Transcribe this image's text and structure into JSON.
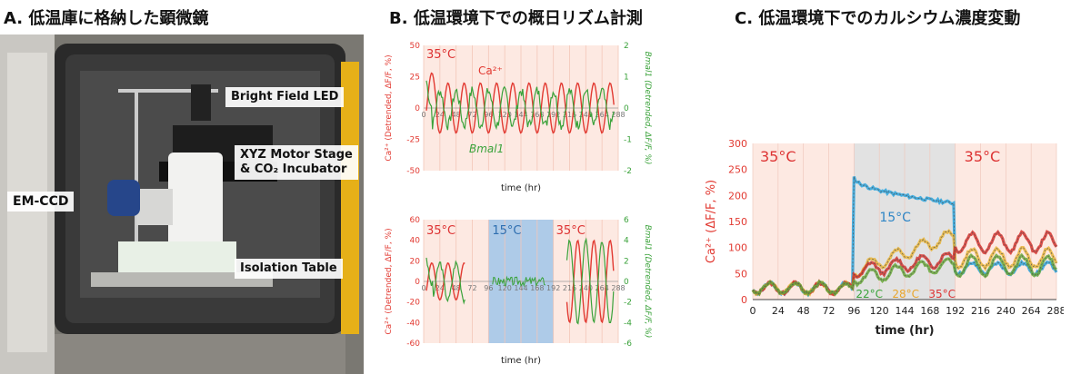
{
  "titles": {
    "a": "A. 低温庫に格納した顕微鏡",
    "b": "B. 低温環境下での概日リズム計測",
    "c": "C. 低温環境下でのカルシウム濃度変動"
  },
  "photo_labels": {
    "bright_field": "Bright Field LED",
    "xyz_line1": "XYZ Motor Stage",
    "xyz_line2": "& CO₂ Incubator",
    "emccd": "EM-CCD",
    "isolation": "Isolation Table"
  },
  "colors": {
    "ca": "#e23a32",
    "bmal": "#3aa23a",
    "cold": "#aecbe8",
    "warm": "#fde9e2",
    "hot": "#d33"
  },
  "chart_data": [
    {
      "type": "line",
      "x": [
        0,
        24,
        48,
        72,
        96,
        120,
        144,
        168,
        192,
        216,
        240,
        264,
        288
      ],
      "xlabel": "time (hr)",
      "ylabel_left": "Ca²⁺ (Detrended, ΔF/F, %)",
      "ylabel_right": "Bmal1 (Detrended, ΔF/F, %)",
      "ylim_left": [
        -50,
        50
      ],
      "yticks_left": [
        -50,
        -25,
        0,
        25,
        50
      ],
      "ylim_right": [
        -2,
        2
      ],
      "yticks_right": [
        -2,
        -1,
        0,
        1,
        2
      ],
      "annotations": {
        "temp": "35°C",
        "ca": "Ca²⁺",
        "bmal": "Bmal1"
      },
      "series": [
        {
          "name": "Ca²⁺",
          "axis": "left",
          "period": 24,
          "amp": 20,
          "phase": 0
        },
        {
          "name": "Bmal1",
          "axis": "right",
          "period": 24,
          "amp": 0.55,
          "phase": 12
        }
      ]
    },
    {
      "type": "line",
      "x": [
        0,
        24,
        48,
        72,
        96,
        120,
        144,
        168,
        192,
        216,
        240,
        264,
        288
      ],
      "xlabel": "time (hr)",
      "ylabel_left": "Ca²⁺ (Detrended, ΔF/F, %)",
      "ylabel_right": "Bmal1 (Detrended, ΔF/F, %)",
      "ylim_left": [
        -60,
        60
      ],
      "yticks_left": [
        -60,
        -40,
        -20,
        0,
        20,
        40,
        60
      ],
      "ylim_right": [
        -6,
        6
      ],
      "yticks_right": [
        -6,
        -4,
        -2,
        0,
        2,
        4,
        6
      ],
      "cold_range": [
        96,
        192
      ],
      "annotations": {
        "temp_left": "35°C",
        "temp_cold": "15°C",
        "temp_right": "35°C"
      }
    },
    {
      "type": "line",
      "x": [
        0,
        24,
        48,
        72,
        96,
        120,
        144,
        168,
        192,
        216,
        240,
        264,
        288
      ],
      "xlabel": "time (hr)",
      "ylabel": "Ca²⁺ (ΔF/F, %)",
      "ylim": [
        0,
        300
      ],
      "yticks": [
        0,
        50,
        100,
        150,
        200,
        250,
        300
      ],
      "cold_range": [
        96,
        192
      ],
      "annotations": {
        "temp_left": "35°C",
        "temp_cold": "15°C",
        "temp_right": "35°C",
        "t22": "22°C",
        "t28": "28°C",
        "t35": "35°C"
      },
      "series": [
        {
          "name": "15°C",
          "before": 22,
          "during_start": 235,
          "during_end": 185,
          "after": 60
        },
        {
          "name": "28°C",
          "before": 22,
          "during_start": 55,
          "during_end": 125,
          "after": 80
        },
        {
          "name": "35°C",
          "before": 22,
          "during_start": 55,
          "during_end": 80,
          "after": 110
        },
        {
          "name": "22°C",
          "before": 22,
          "during_start": 40,
          "during_end": 70,
          "after": 65
        }
      ]
    }
  ]
}
